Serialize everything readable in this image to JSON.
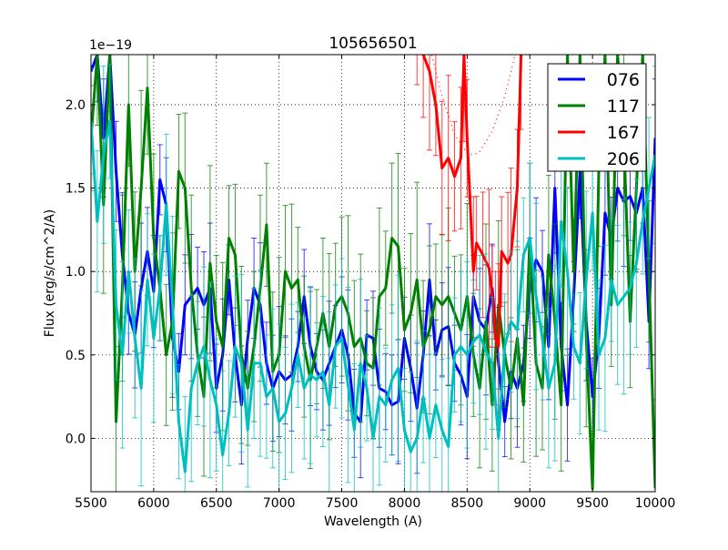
{
  "chart_data": {
    "type": "line",
    "title": "105656501",
    "xlabel": "Wavelength (A)",
    "ylabel": "Flux (erg/s/cm^2/A)",
    "offset_text": "1e−19",
    "xlim": [
      5500,
      10000
    ],
    "ylim": [
      -0.32,
      2.3
    ],
    "xticks": [
      5500,
      6000,
      6500,
      7000,
      7500,
      8000,
      8500,
      9000,
      9500,
      10000
    ],
    "xtick_labels": [
      "5500",
      "6000",
      "6500",
      "7000",
      "7500",
      "8000",
      "8500",
      "9000",
      "9500",
      "10000"
    ],
    "yticks": [
      0.0,
      0.5,
      1.0,
      1.5,
      2.0
    ],
    "ytick_labels": [
      "0.0",
      "0.5",
      "1.0",
      "1.5",
      "2.0"
    ],
    "grid": true,
    "legend_position": "top-right",
    "series": [
      {
        "name": "076",
        "color": "#0000ff",
        "err": 0.3,
        "x_start": 5500,
        "x_step": 50,
        "y": [
          2.2,
          2.3,
          1.8,
          2.3,
          1.6,
          1.1,
          0.75,
          0.62,
          0.9,
          1.12,
          0.88,
          1.55,
          1.4,
          0.6,
          0.4,
          0.8,
          0.85,
          0.9,
          0.8,
          0.9,
          0.3,
          0.5,
          0.95,
          0.5,
          0.2,
          0.6,
          0.9,
          0.8,
          0.45,
          0.3,
          0.4,
          0.35,
          0.38,
          0.55,
          0.85,
          0.55,
          0.4,
          0.35,
          0.45,
          0.55,
          0.65,
          0.5,
          0.15,
          0.1,
          0.62,
          0.6,
          0.3,
          0.28,
          0.2,
          0.22,
          0.6,
          0.42,
          0.18,
          0.5,
          0.95,
          0.5,
          0.65,
          0.67,
          0.45,
          0.38,
          0.25,
          0.85,
          0.7,
          0.65,
          0.9,
          0.45,
          0.1,
          0.4,
          0.3,
          0.45,
          0.9,
          1.07,
          1.0,
          0.55,
          1.5,
          0.55,
          0.2,
          0.85,
          1.6,
          0.7,
          0.25,
          0.6,
          1.35,
          1.2,
          1.5,
          1.42,
          1.45,
          1.35,
          1.5,
          0.7,
          1.8
        ]
      },
      {
        "name": "117",
        "color": "#008000",
        "err": 0.45,
        "x_start": 5500,
        "x_step": 50,
        "y": [
          1.8,
          2.3,
          1.4,
          2.3,
          0.1,
          0.9,
          2.0,
          1.0,
          1.5,
          2.1,
          1.2,
          0.9,
          0.5,
          0.7,
          1.6,
          1.5,
          0.9,
          0.5,
          0.25,
          1.05,
          0.7,
          0.55,
          1.2,
          1.1,
          0.5,
          0.3,
          0.55,
          0.9,
          1.28,
          0.4,
          0.5,
          1.0,
          0.9,
          0.95,
          0.55,
          0.35,
          0.55,
          0.75,
          0.55,
          0.8,
          0.85,
          0.75,
          0.55,
          0.6,
          0.45,
          0.42,
          0.85,
          0.9,
          1.2,
          1.15,
          0.65,
          0.75,
          0.95,
          0.55,
          0.65,
          0.85,
          0.8,
          0.85,
          0.75,
          0.65,
          0.85,
          0.5,
          0.3,
          0.7,
          0.2,
          0.8,
          0.5,
          0.3,
          0.6,
          0.2,
          1.2,
          0.45,
          0.3,
          1.1,
          0.7,
          0.2,
          2.3,
          1.0,
          2.3,
          0.6,
          -0.3,
          1.6,
          2.3,
          0.8,
          2.3,
          1.8,
          0.7,
          1.5,
          2.3,
          1.0,
          -0.3
        ]
      },
      {
        "name": "167",
        "color": "#ff0000",
        "err": 0.4,
        "x": [
          8100,
          8150,
          8200,
          8250,
          8300,
          8350,
          8400,
          8450,
          8475,
          8500,
          8550,
          8575,
          8625,
          8675,
          8700,
          8725,
          8750,
          8775,
          8825,
          8850,
          8900,
          8930
        ],
        "y": [
          2.4,
          2.3,
          2.2,
          2.0,
          1.62,
          1.68,
          1.57,
          1.68,
          2.3,
          1.8,
          1.0,
          1.17,
          1.1,
          1.02,
          0.85,
          0.6,
          0.55,
          1.12,
          1.05,
          1.1,
          1.5,
          2.3
        ]
      },
      {
        "name": "206",
        "color": "#00bfbf",
        "err": 0.45,
        "x_start": 5500,
        "x_step": 50,
        "y": [
          1.9,
          1.3,
          1.7,
          1.9,
          0.8,
          0.5,
          1.0,
          0.6,
          0.3,
          0.95,
          0.6,
          0.9,
          1.4,
          0.8,
          0.1,
          -0.2,
          0.3,
          0.45,
          0.55,
          0.35,
          0.2,
          -0.1,
          0.15,
          0.55,
          0.45,
          0.05,
          0.45,
          0.45,
          0.25,
          0.3,
          0.1,
          0.15,
          0.3,
          0.5,
          0.3,
          0.38,
          0.35,
          0.4,
          0.2,
          0.55,
          0.6,
          0.32,
          0.05,
          0.45,
          0.3,
          0.0,
          0.25,
          0.2,
          0.35,
          0.42,
          0.05,
          -0.08,
          0.0,
          0.25,
          0.0,
          0.2,
          0.05,
          -0.05,
          0.5,
          0.55,
          0.5,
          0.58,
          0.62,
          0.52,
          0.45,
          0.0,
          0.55,
          0.7,
          0.65,
          1.1,
          1.2,
          0.85,
          0.6,
          0.3,
          0.45,
          1.3,
          1.0,
          0.55,
          0.45,
          0.95,
          1.35,
          0.5,
          0.6,
          0.95,
          0.8,
          0.85,
          0.9,
          1.05,
          1.3,
          1.5,
          1.7
        ]
      }
    ],
    "model_curves": [
      {
        "name": "167-model",
        "color": "#ff0000",
        "x": [
          8200,
          8300,
          8400,
          8500,
          8550,
          8600,
          8700,
          8800,
          8900
        ],
        "y": [
          2.35,
          2.05,
          1.82,
          1.71,
          1.7,
          1.72,
          1.84,
          2.05,
          2.35
        ]
      }
    ]
  }
}
